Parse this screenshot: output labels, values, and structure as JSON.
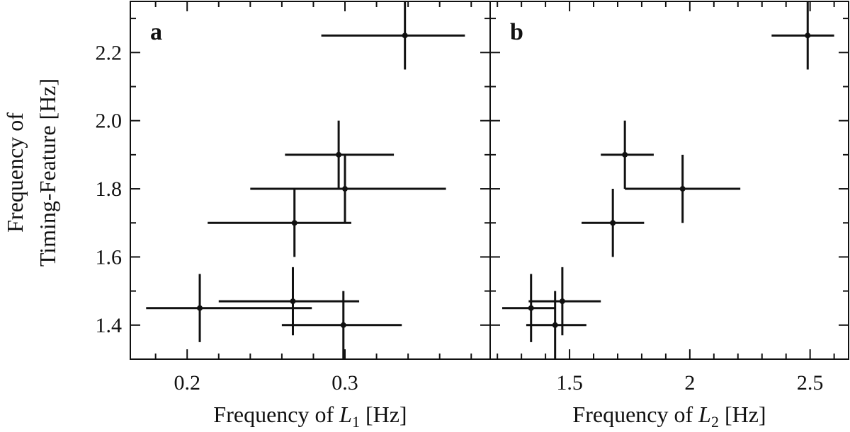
{
  "chart_data": {
    "type": "scatter",
    "ylabel_line1": "Frequency of",
    "ylabel_line2": "Timing-Feature [Hz]",
    "ylim": [
      1.3,
      2.35
    ],
    "yticks": [
      1.4,
      1.6,
      1.8,
      2.0,
      2.2
    ],
    "ytick_labels": [
      "1.4",
      "1.6",
      "1.8",
      "2.0",
      "2.2"
    ],
    "panels": [
      {
        "letter": "a",
        "xlabel_prefix": "Frequency of ",
        "xlabel_var": "L",
        "xlabel_sub": "1",
        "xlabel_suffix": " [Hz]",
        "xlim": [
          0.164,
          0.392
        ],
        "xticks": [
          0.2,
          0.3
        ],
        "xtick_labels": [
          "0.2",
          "0.3"
        ],
        "points": [
          {
            "x": 0.338,
            "xlo": 0.285,
            "xhi": 0.376,
            "y": 2.25,
            "ylo": 2.15,
            "yhi": 2.35
          },
          {
            "x": 0.296,
            "xlo": 0.262,
            "xhi": 0.331,
            "y": 1.9,
            "ylo": 1.8,
            "yhi": 2.0
          },
          {
            "x": 0.3,
            "xlo": 0.24,
            "xhi": 0.364,
            "y": 1.8,
            "ylo": 1.7,
            "yhi": 1.9
          },
          {
            "x": 0.268,
            "xlo": 0.213,
            "xhi": 0.304,
            "y": 1.7,
            "ylo": 1.6,
            "yhi": 1.8
          },
          {
            "x": 0.208,
            "xlo": 0.174,
            "xhi": 0.279,
            "y": 1.45,
            "ylo": 1.35,
            "yhi": 1.55
          },
          {
            "x": 0.267,
            "xlo": 0.22,
            "xhi": 0.309,
            "y": 1.47,
            "ylo": 1.37,
            "yhi": 1.57
          },
          {
            "x": 0.299,
            "xlo": 0.26,
            "xhi": 0.336,
            "y": 1.4,
            "ylo": 1.3,
            "yhi": 1.5
          }
        ]
      },
      {
        "letter": "b",
        "xlabel_prefix": "Frequency of ",
        "xlabel_var": "L",
        "xlabel_sub": "2",
        "xlabel_suffix": " [Hz]",
        "xlim": [
          1.17,
          2.66
        ],
        "xticks": [
          1.5,
          2.0,
          2.5
        ],
        "xtick_labels": [
          "1.5",
          "2",
          "2.5"
        ],
        "points": [
          {
            "x": 2.49,
            "xlo": 2.34,
            "xhi": 2.6,
            "y": 2.25,
            "ylo": 2.15,
            "yhi": 2.35
          },
          {
            "x": 1.73,
            "xlo": 1.63,
            "xhi": 1.85,
            "y": 1.9,
            "ylo": 1.8,
            "yhi": 2.0
          },
          {
            "x": 1.97,
            "xlo": 1.73,
            "xhi": 2.21,
            "y": 1.8,
            "ylo": 1.7,
            "yhi": 1.9
          },
          {
            "x": 1.68,
            "xlo": 1.55,
            "xhi": 1.81,
            "y": 1.7,
            "ylo": 1.6,
            "yhi": 1.8
          },
          {
            "x": 1.34,
            "xlo": 1.22,
            "xhi": 1.44,
            "y": 1.45,
            "ylo": 1.35,
            "yhi": 1.55
          },
          {
            "x": 1.47,
            "xlo": 1.33,
            "xhi": 1.63,
            "y": 1.47,
            "ylo": 1.37,
            "yhi": 1.57
          },
          {
            "x": 1.44,
            "xlo": 1.32,
            "xhi": 1.57,
            "y": 1.4,
            "ylo": 1.3,
            "yhi": 1.5
          }
        ]
      }
    ]
  }
}
